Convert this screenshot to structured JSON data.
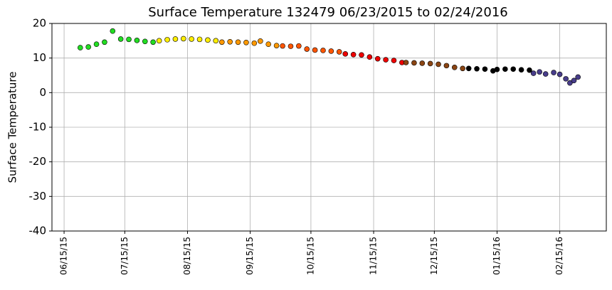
{
  "chart_data": {
    "type": "scatter",
    "title": "Surface Temperature 132479  06/23/2015 to 02/24/2016",
    "y_label": "Surface Temperature",
    "xlim": [
      "2015-06-09",
      "2016-03-09"
    ],
    "xticks": [
      {
        "value": "2015-06-15",
        "label": "06/15/15"
      },
      {
        "value": "2015-07-15",
        "label": "07/15/15"
      },
      {
        "value": "2015-08-15",
        "label": "08/15/15"
      },
      {
        "value": "2015-09-15",
        "label": "09/15/15"
      },
      {
        "value": "2015-10-15",
        "label": "10/15/15"
      },
      {
        "value": "2015-11-15",
        "label": "11/15/15"
      },
      {
        "value": "2015-12-15",
        "label": "12/15/15"
      },
      {
        "value": "2016-01-15",
        "label": "01/15/16"
      },
      {
        "value": "2016-02-15",
        "label": "02/15/16"
      }
    ],
    "ylim": [
      -40,
      20
    ],
    "yticks": [
      -40,
      -30,
      -20,
      -10,
      0,
      10,
      20
    ],
    "grid": true,
    "series": [
      {
        "color": "#22dd22",
        "x": [
          "2015-06-23",
          "2015-06-27",
          "2015-07-01",
          "2015-07-05",
          "2015-07-09",
          "2015-07-13",
          "2015-07-17",
          "2015-07-21",
          "2015-07-25",
          "2015-07-29"
        ],
        "values": [
          13.0,
          13.2,
          14.0,
          14.6,
          17.8,
          15.5,
          15.4,
          15.1,
          14.8,
          14.6
        ]
      },
      {
        "color": "#ffee00",
        "x": [
          "2015-08-01",
          "2015-08-05",
          "2015-08-09",
          "2015-08-13",
          "2015-08-17",
          "2015-08-21",
          "2015-08-25",
          "2015-08-29"
        ],
        "values": [
          15.0,
          15.3,
          15.5,
          15.6,
          15.5,
          15.4,
          15.2,
          15.0
        ]
      },
      {
        "color": "#ff9900",
        "x": [
          "2015-09-01",
          "2015-09-05",
          "2015-09-09",
          "2015-09-13",
          "2015-09-17",
          "2015-09-20",
          "2015-09-24",
          "2015-09-28"
        ],
        "values": [
          14.6,
          14.7,
          14.6,
          14.5,
          14.3,
          14.9,
          14.0,
          13.6
        ]
      },
      {
        "color": "#ff5500",
        "x": [
          "2015-10-01",
          "2015-10-05",
          "2015-10-09",
          "2015-10-13",
          "2015-10-17",
          "2015-10-21",
          "2015-10-25",
          "2015-10-29"
        ],
        "values": [
          13.5,
          13.4,
          13.5,
          12.6,
          12.3,
          12.2,
          12.0,
          11.8
        ]
      },
      {
        "color": "#ee0000",
        "x": [
          "2015-11-01",
          "2015-11-05",
          "2015-11-09",
          "2015-11-13",
          "2015-11-17",
          "2015-11-21",
          "2015-11-25",
          "2015-11-29"
        ],
        "values": [
          11.2,
          11.0,
          10.9,
          10.3,
          9.8,
          9.5,
          9.3,
          8.7
        ]
      },
      {
        "color": "#8b4513",
        "x": [
          "2015-12-01",
          "2015-12-05",
          "2015-12-09",
          "2015-12-13",
          "2015-12-17",
          "2015-12-21",
          "2015-12-25",
          "2015-12-29"
        ],
        "values": [
          8.7,
          8.6,
          8.5,
          8.4,
          8.2,
          7.8,
          7.3,
          7.0
        ]
      },
      {
        "color": "#000000",
        "x": [
          "2016-01-01",
          "2016-01-05",
          "2016-01-09",
          "2016-01-13",
          "2016-01-15",
          "2016-01-19",
          "2016-01-23",
          "2016-01-27",
          "2016-01-31"
        ],
        "values": [
          7.0,
          6.9,
          6.8,
          6.3,
          6.7,
          6.8,
          6.8,
          6.6,
          6.5
        ]
      },
      {
        "color": "#483d8b",
        "x": [
          "2016-02-02",
          "2016-02-05",
          "2016-02-08",
          "2016-02-12",
          "2016-02-15",
          "2016-02-18",
          "2016-02-20",
          "2016-02-22",
          "2016-02-24"
        ],
        "values": [
          5.6,
          6.0,
          5.4,
          5.8,
          5.3,
          4.0,
          2.8,
          3.5,
          4.5
        ]
      }
    ]
  }
}
